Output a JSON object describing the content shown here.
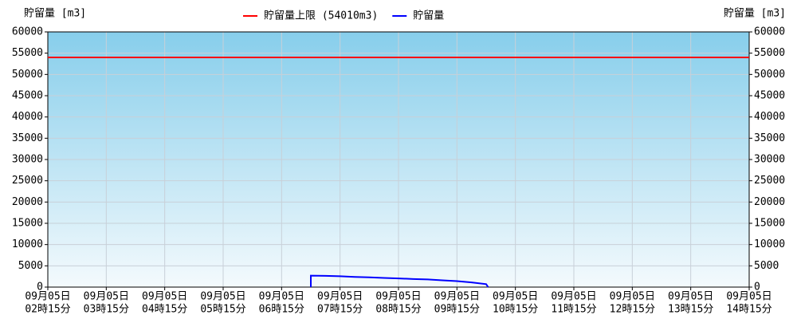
{
  "chart_data": {
    "type": "line",
    "y_label": "貯留量 [m3]",
    "y2_label": "貯留量 [m3]",
    "reference_lines": [
      {
        "name": "貯留量上限 (54010m3)",
        "color": "#ff0000",
        "value": 54010
      }
    ],
    "series": [
      {
        "name": "貯留量",
        "color": "#0000ff",
        "x": [
          "06:45",
          "06:45",
          "07:00",
          "07:15",
          "07:30",
          "07:45",
          "08:00",
          "08:15",
          "08:30",
          "08:45",
          "09:00",
          "09:15",
          "09:30",
          "09:45",
          "09:47"
        ],
        "values": [
          0,
          2700,
          2650,
          2550,
          2400,
          2300,
          2150,
          2050,
          1900,
          1800,
          1600,
          1400,
          1100,
          700,
          0
        ]
      }
    ],
    "xlim": [
      "02:15",
      "14:15"
    ],
    "xticks": [
      {
        "value": "02:15",
        "label": [
          "09月05日",
          "02時15分"
        ]
      },
      {
        "value": "03:15",
        "label": [
          "09月05日",
          "03時15分"
        ]
      },
      {
        "value": "04:15",
        "label": [
          "09月05日",
          "04時15分"
        ]
      },
      {
        "value": "05:15",
        "label": [
          "09月05日",
          "05時15分"
        ]
      },
      {
        "value": "06:15",
        "label": [
          "09月05日",
          "06時15分"
        ]
      },
      {
        "value": "07:15",
        "label": [
          "09月05日",
          "07時15分"
        ]
      },
      {
        "value": "08:15",
        "label": [
          "09月05日",
          "08時15分"
        ]
      },
      {
        "value": "09:15",
        "label": [
          "09月05日",
          "09時15分"
        ]
      },
      {
        "value": "10:15",
        "label": [
          "09月05日",
          "10時15分"
        ]
      },
      {
        "value": "11:15",
        "label": [
          "09月05日",
          "11時15分"
        ]
      },
      {
        "value": "12:15",
        "label": [
          "09月05日",
          "12時15分"
        ]
      },
      {
        "value": "13:15",
        "label": [
          "09月05日",
          "13時15分"
        ]
      },
      {
        "value": "14:15",
        "label": [
          "09月05日",
          "14時15分"
        ]
      }
    ],
    "ylim": [
      0,
      60000
    ],
    "yticks": [
      0,
      5000,
      10000,
      15000,
      20000,
      25000,
      30000,
      35000,
      40000,
      45000,
      50000,
      55000,
      60000
    ],
    "y2lim": [
      0,
      60000
    ],
    "y2ticks": [
      0,
      5000,
      10000,
      15000,
      20000,
      25000,
      30000,
      35000,
      40000,
      45000,
      50000,
      55000,
      60000
    ],
    "grid": true
  }
}
